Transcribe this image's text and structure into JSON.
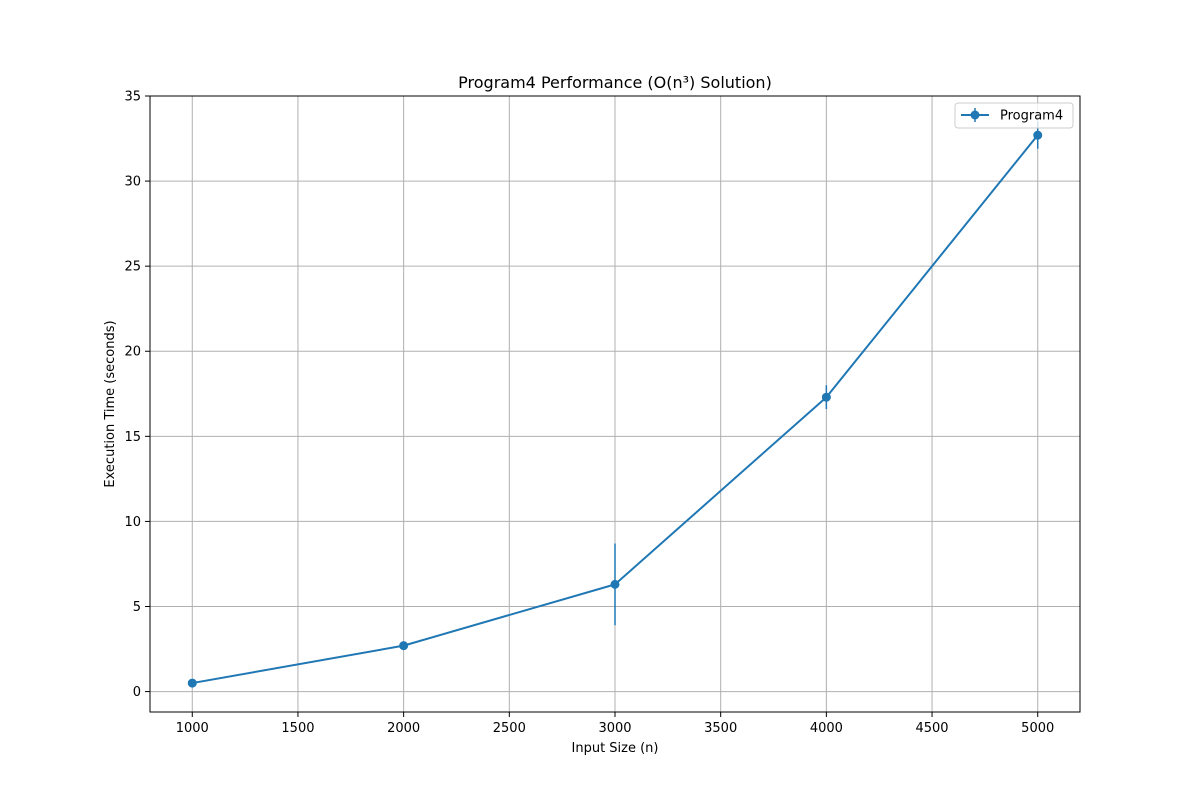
{
  "chart_data": {
    "type": "line",
    "title": "Program4 Performance (O(n³) Solution)",
    "xlabel": "Input Size (n)",
    "ylabel": "Execution Time (seconds)",
    "xlim": [
      800,
      5200
    ],
    "ylim": [
      -1.2,
      35
    ],
    "xticks": [
      1000,
      1500,
      2000,
      2500,
      3000,
      3500,
      4000,
      4500,
      5000
    ],
    "yticks": [
      0,
      5,
      10,
      15,
      20,
      25,
      30,
      35
    ],
    "grid": true,
    "legend_position": "top-right",
    "series": [
      {
        "name": "Program4",
        "color": "#1f77b4",
        "x": [
          1000,
          2000,
          3000,
          4000,
          5000
        ],
        "y": [
          0.5,
          2.7,
          6.3,
          17.3,
          32.7
        ],
        "yerr": [
          0.1,
          0.2,
          2.4,
          0.7,
          0.8
        ]
      }
    ]
  }
}
